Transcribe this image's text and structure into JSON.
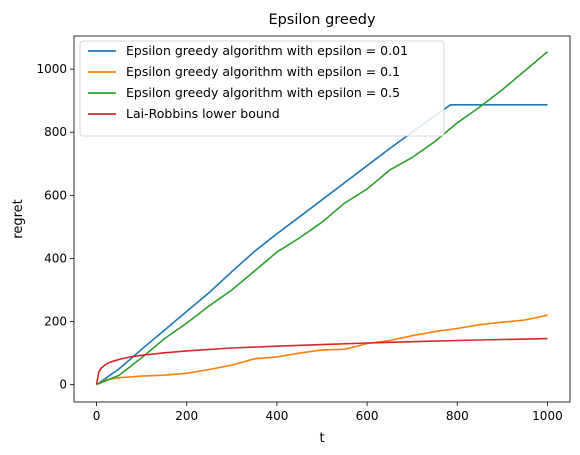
{
  "chart_data": {
    "type": "line",
    "title": "Epsilon greedy",
    "xlabel": "t",
    "ylabel": "regret",
    "xlim": [
      -50,
      1050
    ],
    "ylim": [
      -55,
      1105
    ],
    "xticks": [
      0,
      200,
      400,
      600,
      800,
      1000
    ],
    "yticks": [
      0,
      200,
      400,
      600,
      800,
      1000
    ],
    "grid": false,
    "legend_position": "top-left",
    "series": [
      {
        "name": "Epsilon greedy algorithm with epsilon = 0.01",
        "color": "#1f77b4",
        "x": [
          0,
          50,
          100,
          150,
          200,
          250,
          300,
          350,
          400,
          450,
          500,
          550,
          600,
          650,
          700,
          750,
          785,
          800,
          850,
          900,
          950,
          1000
        ],
        "y": [
          0,
          50,
          112,
          172,
          232,
          292,
          358,
          422,
          478,
          532,
          586,
          640,
          694,
          748,
          800,
          852,
          887,
          887,
          887,
          887,
          887,
          887
        ]
      },
      {
        "name": "Epsilon greedy algorithm with epsilon = 0.1",
        "color": "#ff7f0e",
        "x": [
          0,
          20,
          50,
          100,
          150,
          200,
          250,
          300,
          350,
          400,
          450,
          500,
          550,
          600,
          650,
          700,
          750,
          800,
          850,
          900,
          950,
          1000
        ],
        "y": [
          0,
          15,
          22,
          27,
          30,
          36,
          48,
          62,
          82,
          88,
          100,
          110,
          112,
          130,
          140,
          155,
          168,
          178,
          190,
          198,
          205,
          220
        ]
      },
      {
        "name": "Epsilon greedy algorithm with epsilon = 0.5",
        "color": "#2ca02c",
        "x": [
          0,
          50,
          100,
          150,
          200,
          250,
          300,
          350,
          400,
          450,
          500,
          550,
          600,
          650,
          700,
          750,
          800,
          850,
          900,
          950,
          1000
        ],
        "y": [
          0,
          30,
          85,
          145,
          195,
          250,
          300,
          360,
          420,
          465,
          515,
          575,
          620,
          680,
          720,
          770,
          830,
          880,
          935,
          995,
          1055
        ]
      },
      {
        "name": "Lai-Robbins lower bound",
        "color": "#d62728",
        "x": [
          0,
          5,
          10,
          20,
          30,
          50,
          75,
          100,
          150,
          200,
          300,
          400,
          500,
          600,
          700,
          800,
          900,
          1000
        ],
        "y": [
          0,
          40,
          52,
          64,
          71,
          80,
          88,
          93,
          101,
          107,
          116,
          122,
          127,
          132,
          136,
          140,
          143,
          146
        ]
      }
    ]
  }
}
